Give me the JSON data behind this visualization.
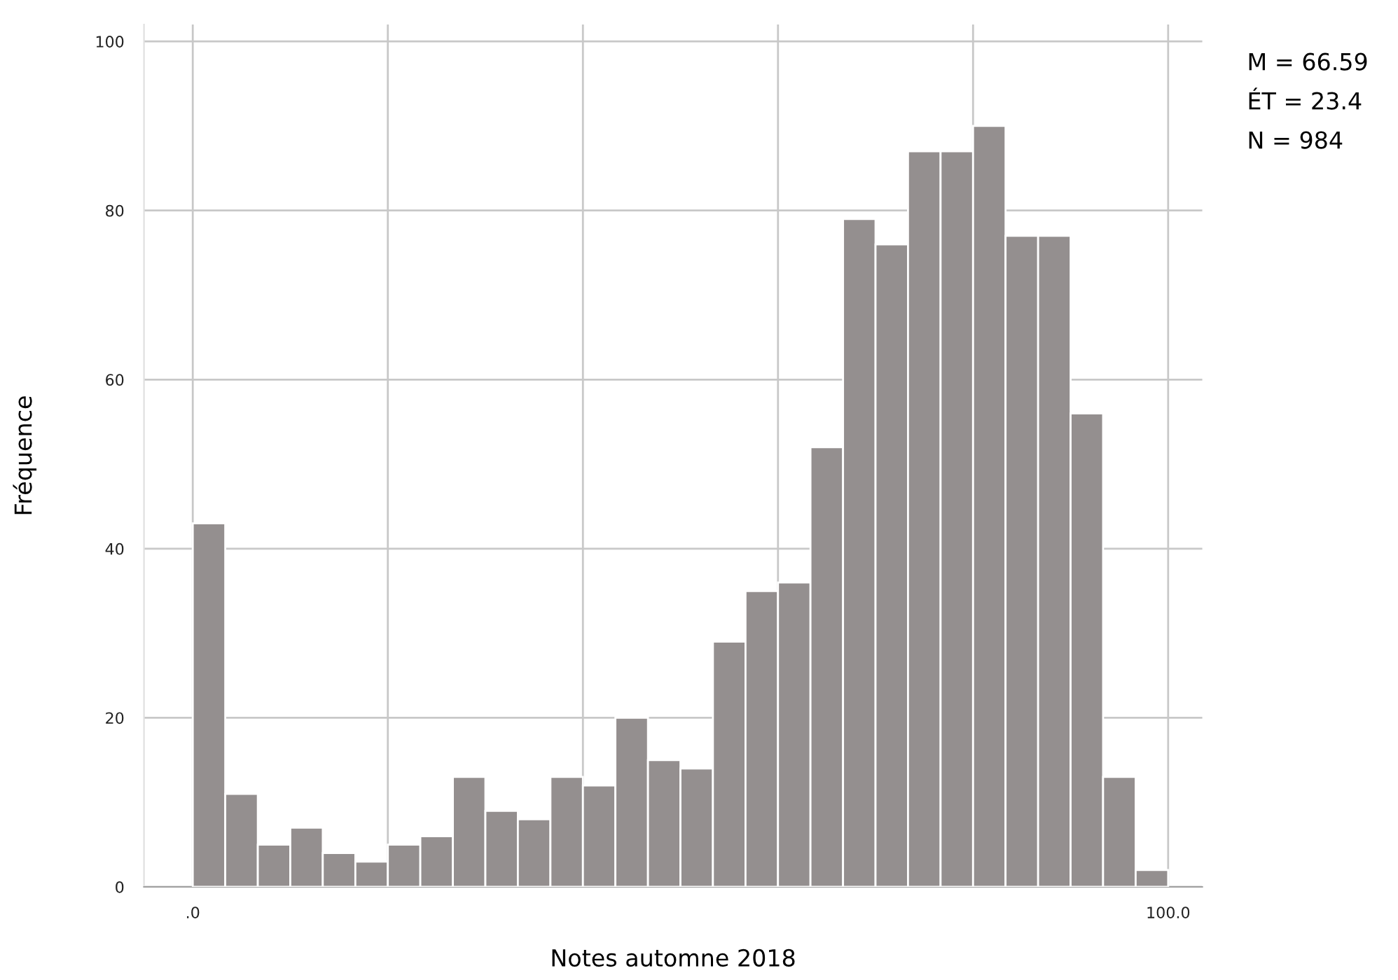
{
  "chart_data": {
    "type": "histogram",
    "xlabel": "Notes automne 2018",
    "ylabel": "Fréquence",
    "bins": [
      0,
      3.33,
      6.67,
      10,
      13.33,
      16.67,
      20,
      23.33,
      26.67,
      30,
      33.33,
      36.67,
      40,
      43.33,
      46.67,
      50,
      53.33,
      56.67,
      60,
      63.33,
      66.67,
      70,
      73.33,
      76.67,
      80,
      83.33,
      86.67,
      90,
      93.33,
      96.67,
      100
    ],
    "values": [
      43,
      11,
      5,
      7,
      4,
      3,
      5,
      6,
      13,
      9,
      8,
      13,
      12,
      20,
      15,
      14,
      29,
      35,
      36,
      52,
      79,
      76,
      87,
      87,
      90,
      77,
      77,
      56,
      13,
      2
    ],
    "color": "#948f8f",
    "xlim": [
      -5,
      103.5
    ],
    "ylim": [
      0,
      102
    ],
    "xticks": [
      {
        "value": 0,
        "label": ".0"
      },
      {
        "value": 20,
        "label": null
      },
      {
        "value": 40,
        "label": null
      },
      {
        "value": 60,
        "label": null
      },
      {
        "value": 80,
        "label": null
      },
      {
        "value": 100,
        "label": "100.0"
      }
    ],
    "yticks": [
      0,
      20,
      40,
      60,
      80,
      100
    ],
    "grid": true,
    "annotations": [
      "M = 66.59",
      "ÉT = 23.4",
      "N = 984"
    ]
  }
}
